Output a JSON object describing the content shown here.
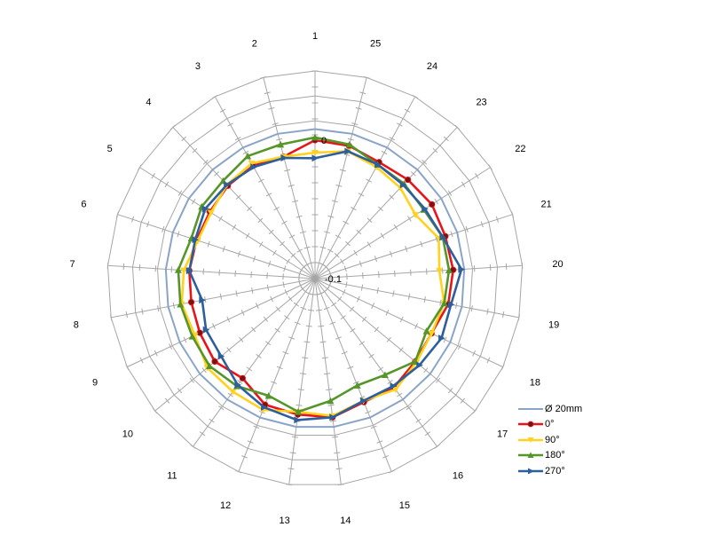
{
  "chart_data": {
    "type": "radar",
    "categories": [
      "1",
      "2",
      "3",
      "4",
      "5",
      "6",
      "7",
      "8",
      "9",
      "10",
      "11",
      "12",
      "13",
      "14",
      "15",
      "16",
      "17",
      "18",
      "19",
      "20",
      "21",
      "22",
      "23",
      "24",
      "25"
    ],
    "rmin": -0.1,
    "rmax": 0.05,
    "axis_labels": {
      "zero": "0",
      "min": "-0.1"
    },
    "grid": true,
    "legend_position": "bottom-right",
    "series": [
      {
        "name": "Ø 20mm",
        "color": "#8AA4C8",
        "marker": "none",
        "values": [
          0.008,
          0.008,
          0.008,
          0.008,
          0.008,
          0.008,
          0.008,
          0.008,
          0.008,
          0.008,
          0.008,
          0.008,
          0.008,
          0.008,
          0.008,
          0.008,
          0.008,
          0.008,
          0.008,
          0.008,
          0.008,
          0.008,
          0.008,
          0.008,
          0.008
        ]
      },
      {
        "name": "0°",
        "color": "#E8141B",
        "marker": "circle",
        "values": [
          0.0,
          -0.009,
          -0.007,
          -0.008,
          -0.01,
          -0.01,
          -0.009,
          -0.009,
          -0.008,
          -0.006,
          -0.011,
          -0.002,
          -0.001,
          0.001,
          -0.004,
          -0.003,
          -0.006,
          -0.007,
          -0.002,
          0.0,
          -0.001,
          0.0,
          -0.002,
          -0.004,
          -0.001
        ]
      },
      {
        "name": "90°",
        "color": "#FFD21F",
        "marker": "triangle-down",
        "values": [
          -0.009,
          -0.009,
          -0.005,
          -0.007,
          -0.011,
          -0.011,
          -0.005,
          -0.002,
          -0.004,
          0.001,
          0.001,
          0.002,
          -0.003,
          0.0,
          -0.005,
          -0.001,
          -0.005,
          -0.007,
          -0.005,
          -0.01,
          -0.006,
          -0.014,
          -0.01,
          -0.008,
          -0.005
        ]
      },
      {
        "name": "180°",
        "color": "#55952A",
        "marker": "triangle-up",
        "values": [
          0.002,
          0.0,
          0.001,
          -0.003,
          -0.003,
          -0.006,
          -0.001,
          -0.001,
          -0.002,
          -0.001,
          -0.004,
          -0.009,
          -0.003,
          -0.011,
          -0.017,
          -0.014,
          -0.006,
          -0.011,
          -0.005,
          -0.003,
          -0.003,
          -0.007,
          -0.006,
          -0.006,
          0.0
        ]
      },
      {
        "name": "270°",
        "color": "#2E5F9D",
        "marker": "triangle-right",
        "values": [
          -0.013,
          -0.01,
          -0.008,
          -0.007,
          -0.006,
          -0.009,
          -0.009,
          -0.017,
          -0.013,
          -0.012,
          -0.005,
          0.0,
          0.003,
          0.001,
          -0.005,
          -0.004,
          -0.002,
          0.001,
          0.0,
          0.006,
          -0.003,
          -0.006,
          -0.007,
          -0.006,
          -0.005
        ]
      }
    ]
  }
}
